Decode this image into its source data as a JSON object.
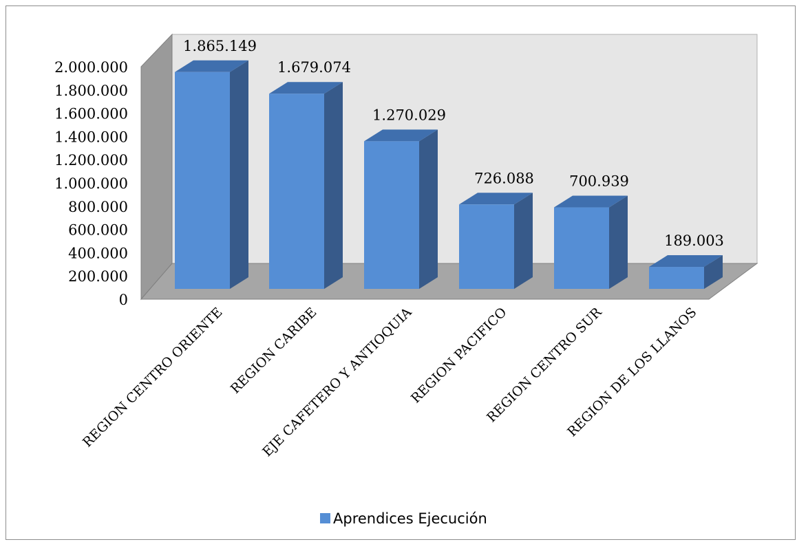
{
  "chart_data": {
    "type": "bar",
    "variant": "3d-column",
    "categories": [
      "REGION CENTRO ORIENTE",
      "REGION CARIBE",
      "EJE CAFETERO Y ANTIOQUIA",
      "REGION PACIFICO",
      "REGION CENTRO SUR",
      "REGION DE LOS LLANOS"
    ],
    "series": [
      {
        "name": "Aprendices Ejecución",
        "values": [
          1865149,
          1679074,
          1270029,
          726088,
          700939,
          189003
        ],
        "data_labels": [
          "1.865.149",
          "1.679.074",
          "1.270.029",
          "726.088",
          "700.939",
          "189.003"
        ]
      }
    ],
    "y_ticks": [
      0,
      200000,
      400000,
      600000,
      800000,
      1000000,
      1200000,
      1400000,
      1600000,
      1800000,
      2000000
    ],
    "y_tick_labels": [
      "0",
      "200.000",
      "400.000",
      "600.000",
      "800.000",
      "1.000.000",
      "1.200.000",
      "1.400.000",
      "1.600.000",
      "1.800.000",
      "2.000.000"
    ],
    "ylim": [
      0,
      2000000
    ],
    "legend_position": "bottom",
    "grid": false,
    "colors": {
      "bar_front": "#558ed5",
      "bar_top": "#3f6fae",
      "bar_side": "#375a8a",
      "wall_back": "#e6e6e6",
      "wall_side": "#9a9a9a",
      "floor": "#a6a6a6",
      "legend_swatch": "#558ed5"
    }
  }
}
